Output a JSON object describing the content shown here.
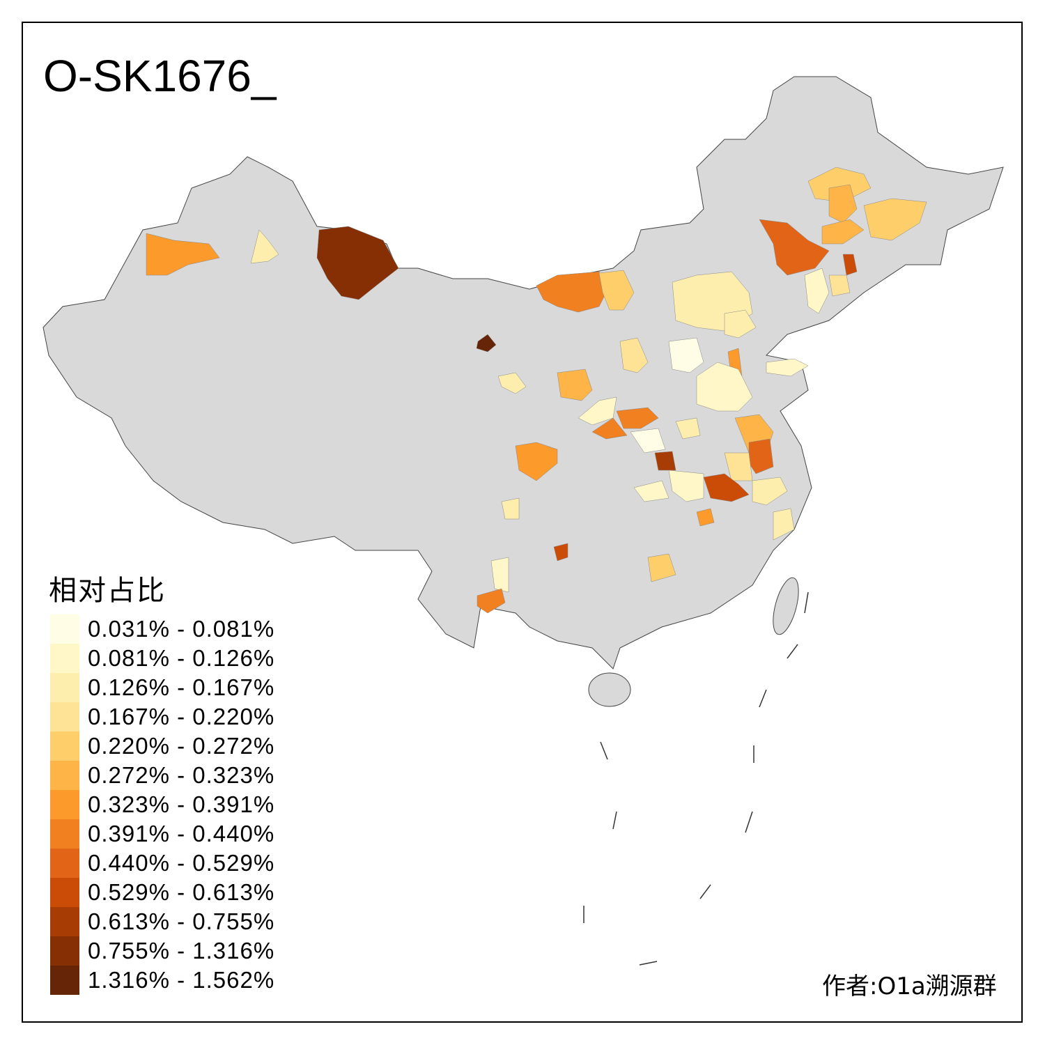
{
  "title": "O-SK1676_",
  "legend": {
    "title": "相对占比",
    "items": [
      {
        "label": "0.031% - 0.081%",
        "color": "#fffde5"
      },
      {
        "label": "0.081% - 0.126%",
        "color": "#fff7c8"
      },
      {
        "label": "0.126% - 0.167%",
        "color": "#feeeae"
      },
      {
        "label": "0.167% - 0.220%",
        "color": "#fee397"
      },
      {
        "label": "0.220% - 0.272%",
        "color": "#fece6a"
      },
      {
        "label": "0.272% - 0.323%",
        "color": "#feb446"
      },
      {
        "label": "0.323% - 0.391%",
        "color": "#fd9a2c"
      },
      {
        "label": "0.391% - 0.440%",
        "color": "#f18021"
      },
      {
        "label": "0.440% - 0.529%",
        "color": "#e16417"
      },
      {
        "label": "0.529% - 0.613%",
        "color": "#cb4c06"
      },
      {
        "label": "0.613% - 0.755%",
        "color": "#a83c05"
      },
      {
        "label": "0.755% - 1.316%",
        "color": "#862e04"
      },
      {
        "label": "1.316% - 1.562%",
        "color": "#662506"
      }
    ]
  },
  "base_color": "#d9d9d9",
  "author": "作者:O1a溯源群"
}
